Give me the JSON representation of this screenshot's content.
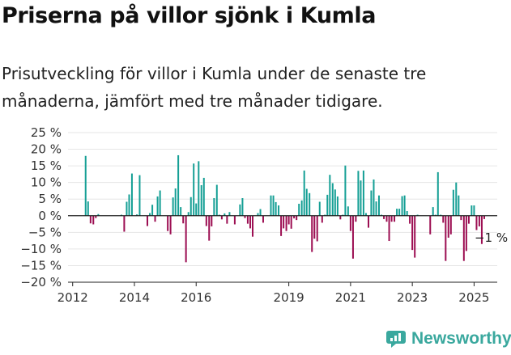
{
  "header": {
    "title": "Priserna på villor sjönk i Kumla",
    "subtitle": "Prisutveckling för villor i Kumla under de senaste tre månaderna, jämfört med tre månader tidigare."
  },
  "logo": {
    "text": "Newsworthy",
    "icon": "newsworthy-chart-icon"
  },
  "colors": {
    "positive": "#159f95",
    "negative": "#9c0e52",
    "grid": "#e6e6e6",
    "axis": "#222222"
  },
  "chart_data": {
    "type": "bar",
    "title": "",
    "xlabel": "",
    "ylabel": "",
    "ylim": [
      -20,
      25
    ],
    "xlim": [
      2011.85,
      2025.75
    ],
    "grid": true,
    "y_ticks": [
      25,
      20,
      15,
      10,
      5,
      0,
      -5,
      -10,
      -15,
      -20
    ],
    "y_tick_labels": [
      "25 %",
      "20 %",
      "15 %",
      "10 %",
      "5 %",
      "0 %",
      "−5 %",
      "−10 %",
      "−15 %",
      "−20 %"
    ],
    "x_ticks": [
      2012,
      2014,
      2016,
      2019,
      2021,
      2023,
      2025
    ],
    "x_tick_labels": [
      "2012",
      "2014",
      "2016",
      "2019",
      "2021",
      "2023",
      "2025"
    ],
    "annotation": {
      "text": "−1 %",
      "x": 2025.33,
      "y": -1
    },
    "bar_width": 0.072,
    "series": [
      {
        "values": [
          [
            2012.42,
            18
          ],
          [
            2012.5,
            4.3
          ],
          [
            2012.58,
            -2.3
          ],
          [
            2012.67,
            -2.6
          ],
          [
            2012.75,
            -0.7
          ],
          [
            2012.83,
            0.5
          ],
          [
            2013.58,
            0.3
          ],
          [
            2013.67,
            -4.8
          ],
          [
            2013.75,
            4.2
          ],
          [
            2013.83,
            6.4
          ],
          [
            2013.92,
            12.7
          ],
          [
            2014.08,
            0.4
          ],
          [
            2014.17,
            12.2
          ],
          [
            2014.42,
            -3.1
          ],
          [
            2014.5,
            0.8
          ],
          [
            2014.58,
            3.3
          ],
          [
            2014.67,
            -1.8
          ],
          [
            2014.75,
            5.8
          ],
          [
            2014.83,
            7.6
          ],
          [
            2015.08,
            -4.6
          ],
          [
            2015.17,
            -5.6
          ],
          [
            2015.25,
            5.5
          ],
          [
            2015.33,
            8.2
          ],
          [
            2015.42,
            18.2
          ],
          [
            2015.5,
            2.6
          ],
          [
            2015.58,
            -2.3
          ],
          [
            2015.67,
            -14
          ],
          [
            2015.75,
            1.1
          ],
          [
            2015.83,
            5.6
          ],
          [
            2015.92,
            15.7
          ],
          [
            2016.0,
            3.7
          ],
          [
            2016.08,
            16.4
          ],
          [
            2016.17,
            9.2
          ],
          [
            2016.25,
            11.4
          ],
          [
            2016.33,
            -3.1
          ],
          [
            2016.42,
            -7.5
          ],
          [
            2016.5,
            -3.2
          ],
          [
            2016.58,
            5.3
          ],
          [
            2016.67,
            9.3
          ],
          [
            2016.75,
            0.3
          ],
          [
            2016.83,
            -1.1
          ],
          [
            2016.92,
            0.7
          ],
          [
            2017.0,
            -2.4
          ],
          [
            2017.08,
            1.1
          ],
          [
            2017.25,
            -2.6
          ],
          [
            2017.42,
            3.4
          ],
          [
            2017.5,
            5.3
          ],
          [
            2017.58,
            -0.7
          ],
          [
            2017.67,
            -2.4
          ],
          [
            2017.75,
            -3.8
          ],
          [
            2017.83,
            -6.3
          ],
          [
            2018.0,
            0.8
          ],
          [
            2018.08,
            2
          ],
          [
            2018.17,
            -2.1
          ],
          [
            2018.42,
            6.1
          ],
          [
            2018.5,
            6.1
          ],
          [
            2018.58,
            4.1
          ],
          [
            2018.67,
            3.1
          ],
          [
            2018.75,
            -6.1
          ],
          [
            2018.83,
            -3.8
          ],
          [
            2018.92,
            -4.6
          ],
          [
            2019.0,
            -2.6
          ],
          [
            2019.08,
            -3.9
          ],
          [
            2019.17,
            -0.8
          ],
          [
            2019.25,
            -1.3
          ],
          [
            2019.33,
            3.6
          ],
          [
            2019.42,
            4.6
          ],
          [
            2019.5,
            13.6
          ],
          [
            2019.58,
            8.1
          ],
          [
            2019.67,
            6.8
          ],
          [
            2019.75,
            -10.9
          ],
          [
            2019.83,
            -6.9
          ],
          [
            2019.92,
            -7.7
          ],
          [
            2020.0,
            4.2
          ],
          [
            2020.08,
            -2.1
          ],
          [
            2020.17,
            0.3
          ],
          [
            2020.25,
            6.3
          ],
          [
            2020.33,
            12.3
          ],
          [
            2020.42,
            9.8
          ],
          [
            2020.5,
            7.9
          ],
          [
            2020.58,
            5.8
          ],
          [
            2020.67,
            -1.1
          ],
          [
            2020.75,
            0.3
          ],
          [
            2020.83,
            15.1
          ],
          [
            2020.92,
            2.8
          ],
          [
            2021.0,
            -4.6
          ],
          [
            2021.08,
            -12.9
          ],
          [
            2021.17,
            -1.8
          ],
          [
            2021.25,
            13.5
          ],
          [
            2021.33,
            10.6
          ],
          [
            2021.42,
            13.6
          ],
          [
            2021.5,
            0.8
          ],
          [
            2021.58,
            -3.6
          ],
          [
            2021.67,
            7.6
          ],
          [
            2021.75,
            10.9
          ],
          [
            2021.83,
            4.3
          ],
          [
            2021.92,
            6.1
          ],
          [
            2022.0,
            0.3
          ],
          [
            2022.08,
            -1
          ],
          [
            2022.17,
            -1.8
          ],
          [
            2022.25,
            -7.6
          ],
          [
            2022.33,
            -1.8
          ],
          [
            2022.42,
            -1.8
          ],
          [
            2022.5,
            2.1
          ],
          [
            2022.58,
            2.1
          ],
          [
            2022.67,
            5.9
          ],
          [
            2022.75,
            6.1
          ],
          [
            2022.83,
            1.4
          ],
          [
            2022.92,
            -2.4
          ],
          [
            2023.0,
            -10.3
          ],
          [
            2023.08,
            -12.6
          ],
          [
            2023.17,
            0.3
          ],
          [
            2023.58,
            -5.6
          ],
          [
            2023.67,
            2.6
          ],
          [
            2023.75,
            0.3
          ],
          [
            2023.83,
            13.1
          ],
          [
            2023.92,
            0.3
          ],
          [
            2024.0,
            -2.1
          ],
          [
            2024.08,
            -13.6
          ],
          [
            2024.17,
            -6.6
          ],
          [
            2024.25,
            -5.6
          ],
          [
            2024.33,
            7.8
          ],
          [
            2024.42,
            10
          ],
          [
            2024.5,
            6.1
          ],
          [
            2024.58,
            -1.3
          ],
          [
            2024.67,
            -13.6
          ],
          [
            2024.75,
            -10.6
          ],
          [
            2024.83,
            -2.4
          ],
          [
            2024.92,
            3.1
          ],
          [
            2025.0,
            3.1
          ],
          [
            2025.08,
            -4.3
          ],
          [
            2025.17,
            -3.2
          ],
          [
            2025.25,
            -8.5
          ],
          [
            2025.33,
            -1
          ]
        ]
      }
    ]
  }
}
